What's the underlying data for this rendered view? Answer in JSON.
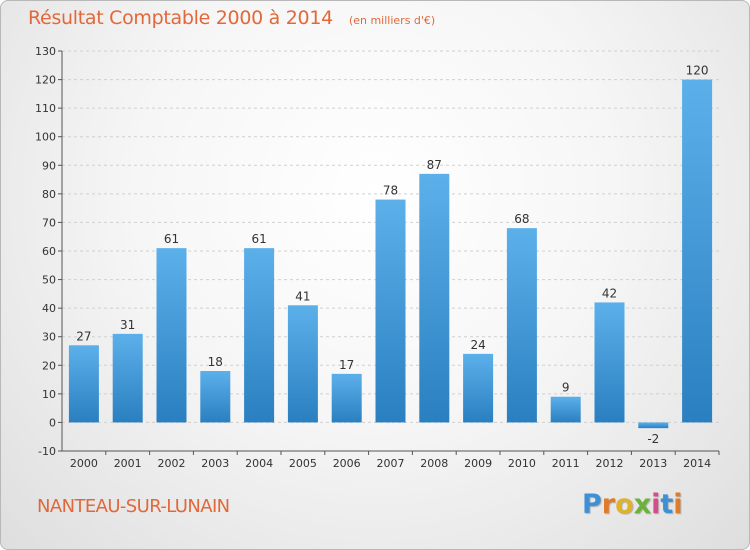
{
  "title": "Résultat Comptable 2000 à 2014",
  "unit_note": "(en milliers d'€)",
  "location": "NANTEAU-SUR-LUNAIN",
  "brand": "Proxiti",
  "colors": {
    "bar": "#3d94d6",
    "bar_light": "#5cb0ea",
    "title": "#e2683a",
    "axis": "#555555",
    "grid": "#d0d0d0"
  },
  "chart_data": {
    "type": "bar",
    "categories": [
      "2000",
      "2001",
      "2002",
      "2003",
      "2004",
      "2005",
      "2006",
      "2007",
      "2008",
      "2009",
      "2010",
      "2011",
      "2012",
      "2013",
      "2014"
    ],
    "values": [
      27,
      31,
      61,
      18,
      61,
      41,
      17,
      78,
      87,
      24,
      68,
      9,
      42,
      -2,
      120
    ],
    "ylim": [
      -10,
      130
    ],
    "yticks": [
      -10,
      0,
      10,
      20,
      30,
      40,
      50,
      60,
      70,
      80,
      90,
      100,
      110,
      120,
      130
    ],
    "grid": true,
    "xlabel": "",
    "ylabel": ""
  }
}
